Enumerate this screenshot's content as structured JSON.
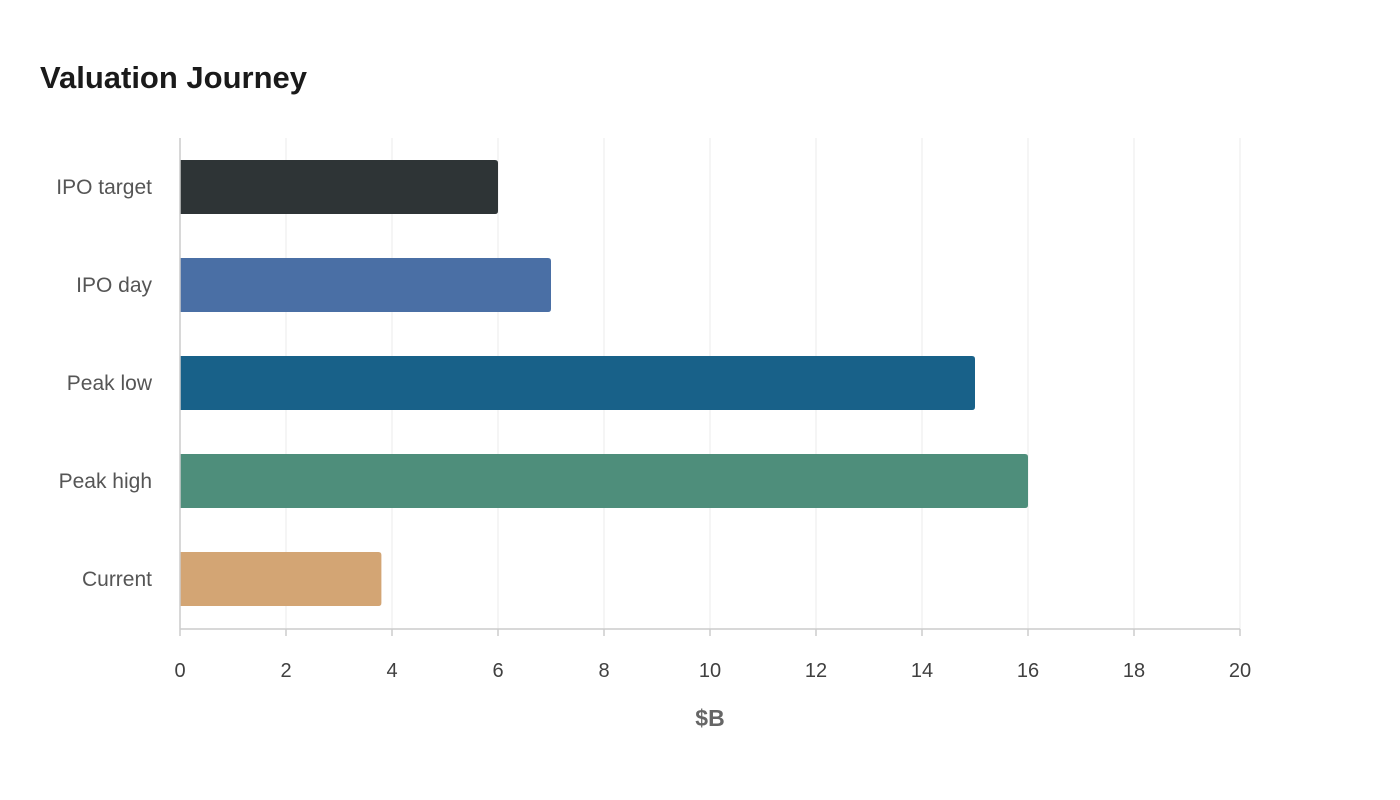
{
  "chart_data": {
    "type": "bar",
    "orientation": "horizontal",
    "title": "Valuation Journey",
    "xlabel": "$B",
    "ylabel": "",
    "categories": [
      "IPO target",
      "IPO day",
      "Peak low",
      "Peak high",
      "Current"
    ],
    "values": [
      6,
      7,
      15,
      16,
      3.8
    ],
    "colors": [
      "#2e3436",
      "#4a6fa5",
      "#186189",
      "#4e8e7b",
      "#d3a574"
    ],
    "xlim": [
      0,
      20
    ],
    "xticks": [
      0,
      2,
      4,
      6,
      8,
      10,
      12,
      14,
      16,
      18,
      20
    ],
    "grid": "vertical",
    "legend": "none"
  }
}
